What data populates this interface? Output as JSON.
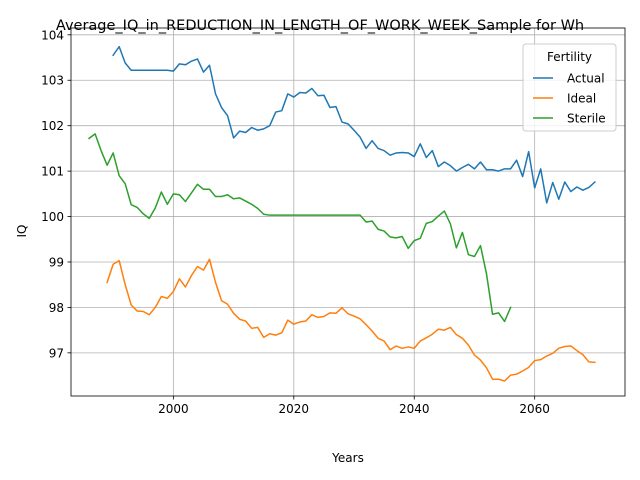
{
  "chart_data": {
    "type": "line",
    "title": "Average_IQ_in_REDUCTION_IN_LENGTH_OF_WORK_WEEK_Sample for Wh",
    "xlabel": "Years",
    "ylabel": "IQ",
    "xlim": [
      1983,
      2075
    ],
    "ylim": [
      96.05,
      104.15
    ],
    "xticks": [
      2000,
      2020,
      2040,
      2060
    ],
    "yticks": [
      97,
      98,
      99,
      100,
      101,
      102,
      103,
      104
    ],
    "grid": true,
    "legend": {
      "title": "Fertility",
      "placement": "top-right"
    },
    "series": [
      {
        "name": "Actual",
        "color": "#1f77b4",
        "x": [
          1990,
          1991,
          1992,
          1993,
          1994,
          1995,
          1996,
          1997,
          1998,
          1999,
          2000,
          2001,
          2002,
          2003,
          2004,
          2005,
          2006,
          2007,
          2008,
          2009,
          2010,
          2011,
          2012,
          2013,
          2014,
          2015,
          2016,
          2017,
          2018,
          2019,
          2020,
          2021,
          2022,
          2023,
          2024,
          2025,
          2026,
          2027,
          2028,
          2029,
          2030,
          2031,
          2032,
          2033,
          2034,
          2035,
          2036,
          2037,
          2038,
          2039,
          2040,
          2041,
          2042,
          2043,
          2044,
          2045,
          2046,
          2047,
          2048,
          2049,
          2050,
          2051,
          2052,
          2053,
          2054,
          2055,
          2056,
          2057,
          2058,
          2059,
          2060,
          2061,
          2062,
          2063,
          2064,
          2065,
          2066,
          2067,
          2068,
          2069,
          2070
        ],
        "y": [
          103.55,
          103.74,
          103.38,
          103.22,
          103.22,
          103.22,
          103.22,
          103.22,
          103.22,
          103.22,
          103.2,
          103.36,
          103.34,
          103.42,
          103.47,
          103.18,
          103.33,
          102.7,
          102.4,
          102.22,
          101.73,
          101.88,
          101.85,
          101.96,
          101.9,
          101.93,
          102.0,
          102.3,
          102.33,
          102.7,
          102.63,
          102.73,
          102.72,
          102.82,
          102.66,
          102.67,
          102.4,
          102.42,
          102.08,
          102.04,
          101.9,
          101.75,
          101.5,
          101.67,
          101.5,
          101.45,
          101.35,
          101.4,
          101.41,
          101.4,
          101.32,
          101.6,
          101.3,
          101.45,
          101.1,
          101.2,
          101.12,
          101.0,
          101.08,
          101.15,
          101.05,
          101.2,
          101.03,
          101.03,
          101.0,
          101.05,
          101.05,
          101.24,
          100.88,
          101.43,
          100.63,
          101.05,
          100.3,
          100.75,
          100.38,
          100.76,
          100.55,
          100.65,
          100.58,
          100.64,
          100.76
        ]
      },
      {
        "name": "Ideal",
        "color": "#ff7f0e",
        "x": [
          1989,
          1990,
          1991,
          1992,
          1993,
          1994,
          1995,
          1996,
          1997,
          1998,
          1999,
          2000,
          2001,
          2002,
          2003,
          2004,
          2005,
          2006,
          2007,
          2008,
          2009,
          2010,
          2011,
          2012,
          2013,
          2014,
          2015,
          2016,
          2017,
          2018,
          2019,
          2020,
          2021,
          2022,
          2023,
          2024,
          2025,
          2026,
          2027,
          2028,
          2029,
          2030,
          2031,
          2032,
          2033,
          2034,
          2035,
          2036,
          2037,
          2038,
          2039,
          2040,
          2041,
          2042,
          2043,
          2044,
          2045,
          2046,
          2047,
          2048,
          2049,
          2050,
          2051,
          2052,
          2053,
          2054,
          2055,
          2056,
          2057,
          2058,
          2059,
          2060,
          2061,
          2062,
          2063,
          2064,
          2065,
          2066,
          2067,
          2068,
          2069,
          2070
        ],
        "y": [
          98.55,
          98.95,
          99.03,
          98.5,
          98.05,
          97.92,
          97.91,
          97.84,
          98.0,
          98.24,
          98.2,
          98.35,
          98.63,
          98.45,
          98.7,
          98.9,
          98.82,
          99.06,
          98.55,
          98.15,
          98.07,
          97.87,
          97.74,
          97.7,
          97.54,
          97.56,
          97.34,
          97.42,
          97.39,
          97.44,
          97.72,
          97.63,
          97.68,
          97.7,
          97.84,
          97.78,
          97.8,
          97.88,
          97.87,
          97.99,
          97.86,
          97.81,
          97.75,
          97.62,
          97.48,
          97.32,
          97.26,
          97.07,
          97.15,
          97.1,
          97.13,
          97.1,
          97.26,
          97.33,
          97.41,
          97.52,
          97.5,
          97.56,
          97.4,
          97.32,
          97.17,
          96.95,
          96.84,
          96.67,
          96.42,
          96.42,
          96.38,
          96.51,
          96.53,
          96.6,
          96.68,
          96.83,
          96.85,
          96.93,
          96.99,
          97.1,
          97.14,
          97.15,
          97.05,
          96.96,
          96.8,
          96.79
        ]
      },
      {
        "name": "Sterile",
        "color": "#2ca02c",
        "x": [
          1986,
          1987,
          1988,
          1989,
          1990,
          1991,
          1992,
          1993,
          1994,
          1995,
          1996,
          1997,
          1998,
          1999,
          2000,
          2001,
          2002,
          2003,
          2004,
          2005,
          2006,
          2007,
          2008,
          2009,
          2010,
          2011,
          2012,
          2013,
          2014,
          2015,
          2016,
          2017,
          2018,
          2019,
          2020,
          2021,
          2022,
          2023,
          2024,
          2025,
          2026,
          2027,
          2028,
          2029,
          2030,
          2031,
          2032,
          2033,
          2034,
          2035,
          2036,
          2037,
          2038,
          2039,
          2040,
          2041,
          2042,
          2043,
          2044,
          2045,
          2046,
          2047,
          2048,
          2049,
          2050,
          2051,
          2052,
          2053,
          2054,
          2055,
          2056
        ],
        "y": [
          101.72,
          101.82,
          101.45,
          101.13,
          101.4,
          100.9,
          100.72,
          100.26,
          100.2,
          100.06,
          99.96,
          100.19,
          100.54,
          100.27,
          100.5,
          100.48,
          100.33,
          100.52,
          100.71,
          100.6,
          100.6,
          100.44,
          100.44,
          100.48,
          100.39,
          100.41,
          100.34,
          100.27,
          100.18,
          100.05,
          100.03,
          100.03,
          100.03,
          100.03,
          100.03,
          100.03,
          100.03,
          100.03,
          100.03,
          100.03,
          100.03,
          100.03,
          100.03,
          100.03,
          100.03,
          100.03,
          99.88,
          99.9,
          99.72,
          99.68,
          99.55,
          99.53,
          99.56,
          99.3,
          99.47,
          99.52,
          99.85,
          99.89,
          100.01,
          100.12,
          99.84,
          99.31,
          99.65,
          99.16,
          99.12,
          99.36,
          98.74,
          97.85,
          97.88,
          97.69,
          98.0
        ]
      }
    ]
  }
}
